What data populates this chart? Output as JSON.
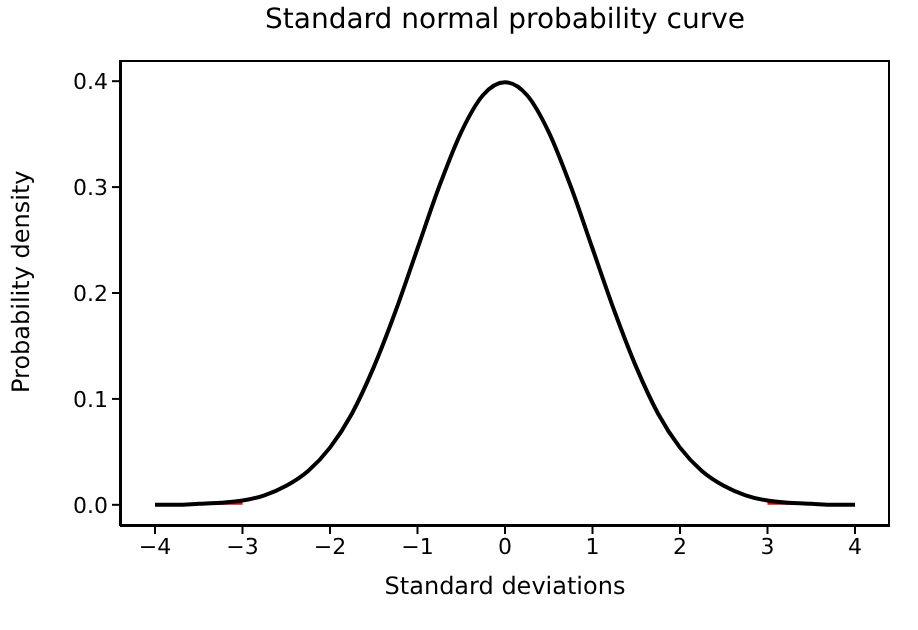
{
  "chart_data": {
    "type": "line",
    "title": "Standard normal probability curve",
    "xlabel": "Standard deviations",
    "ylabel": "Probability density",
    "marker": "none",
    "line_style": "solid",
    "grid": false,
    "legend": false,
    "xlim": [
      -4.4,
      4.4
    ],
    "ylim": [
      -0.02,
      0.42
    ],
    "xticks": [
      {
        "value": -4,
        "label": "−4"
      },
      {
        "value": -3,
        "label": "−3"
      },
      {
        "value": -2,
        "label": "−2"
      },
      {
        "value": -1,
        "label": "−1"
      },
      0,
      1,
      2,
      3,
      4
    ],
    "yticks": [
      {
        "value": 0,
        "label": "0.0"
      },
      0.1,
      0.2,
      0.3,
      0.4
    ],
    "series": [
      {
        "type": "area",
        "color": "#ff0000",
        "x": [
          -4,
          -3.75,
          -3.5,
          -3.25,
          -3
        ],
        "values": [
          0.0,
          0.0,
          0.001,
          0.002,
          0.004
        ]
      },
      {
        "type": "area",
        "color": "#ff0000",
        "x": [
          3,
          3.25,
          3.5,
          3.75,
          4
        ],
        "values": [
          0.004,
          0.002,
          0.001,
          0.0,
          0.0
        ]
      },
      {
        "color": "#000000",
        "x": [
          -4,
          -3.75,
          -3.5,
          -3.25,
          -3,
          -2.75,
          -2.5,
          -2.25,
          -2,
          -1.75,
          -1.5,
          -1.25,
          -1,
          -0.75,
          -0.5,
          -0.25,
          0,
          0.25,
          0.5,
          0.75,
          1,
          1.25,
          1.5,
          1.75,
          2,
          2.25,
          2.5,
          2.75,
          3,
          3.25,
          3.5,
          3.75,
          4
        ],
        "values": [
          0.0,
          0.0,
          0.001,
          0.002,
          0.004,
          0.009,
          0.018,
          0.032,
          0.054,
          0.086,
          0.13,
          0.183,
          0.242,
          0.301,
          0.352,
          0.387,
          0.399,
          0.387,
          0.352,
          0.301,
          0.242,
          0.183,
          0.13,
          0.086,
          0.054,
          0.032,
          0.018,
          0.009,
          0.004,
          0.002,
          0.001,
          0.0,
          0.0
        ]
      }
    ]
  }
}
